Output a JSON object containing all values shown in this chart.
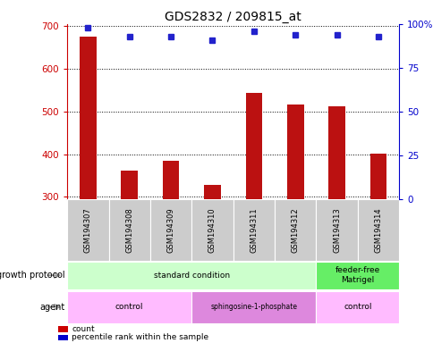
{
  "title": "GDS2832 / 209815_at",
  "samples": [
    "GSM194307",
    "GSM194308",
    "GSM194309",
    "GSM194310",
    "GSM194311",
    "GSM194312",
    "GSM194313",
    "GSM194314"
  ],
  "counts": [
    675,
    362,
    385,
    328,
    543,
    517,
    513,
    401
  ],
  "percentile_ranks": [
    98,
    93,
    93,
    91,
    96,
    94,
    94,
    93
  ],
  "ylim_left": [
    295,
    705
  ],
  "ylim_right": [
    0,
    100
  ],
  "yticks_left": [
    300,
    400,
    500,
    600,
    700
  ],
  "yticks_right": [
    0,
    25,
    50,
    75,
    100
  ],
  "bar_color": "#bb1111",
  "dot_color": "#2222cc",
  "bar_width": 0.4,
  "growth_protocol_groups": [
    {
      "label": "standard condition",
      "start": 0,
      "end": 6,
      "color": "#ccffcc"
    },
    {
      "label": "feeder-free\nMatrigel",
      "start": 6,
      "end": 8,
      "color": "#66ee66"
    }
  ],
  "agent_groups": [
    {
      "label": "control",
      "start": 0,
      "end": 3,
      "color": "#ffbbff"
    },
    {
      "label": "sphingosine-1-phosphate",
      "start": 3,
      "end": 6,
      "color": "#dd88dd"
    },
    {
      "label": "control",
      "start": 6,
      "end": 8,
      "color": "#ffbbff"
    }
  ],
  "row_labels": [
    "growth protocol",
    "agent"
  ],
  "grid_color": "#000000",
  "left_axis_color": "#cc0000",
  "right_axis_color": "#0000cc",
  "background_color": "#ffffff",
  "legend_items": [
    {
      "label": "count",
      "color": "#cc0000"
    },
    {
      "label": "percentile rank within the sample",
      "color": "#0000cc"
    }
  ],
  "sample_box_color": "#cccccc",
  "arrow_color": "#999999"
}
